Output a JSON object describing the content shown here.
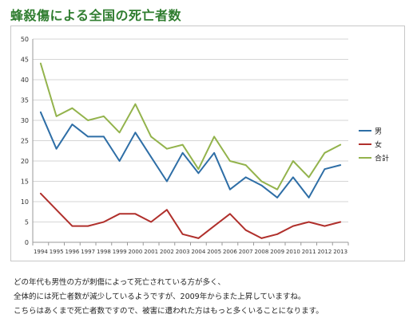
{
  "page": {
    "title": "蜂殺傷による全国の死亡者数"
  },
  "caption": {
    "lines": [
      "どの年代も男性の方が刺傷によって死亡されている方が多く、",
      "全体的には死亡者数が減少しているようですが、2009年からまた上昇していますね。",
      "こちらはあくまで死亡者数ですので、被害に遭われた方はもっと多くいることになります。"
    ]
  },
  "chart_data": {
    "type": "line",
    "title": "",
    "xlabel": "",
    "ylabel": "",
    "ylim": [
      0,
      50
    ],
    "yticks": [
      0,
      5,
      10,
      15,
      20,
      25,
      30,
      35,
      40,
      45,
      50
    ],
    "grid": true,
    "legend_position": "right",
    "categories": [
      "1994",
      "1995",
      "1996",
      "1997",
      "1998",
      "1999",
      "2000",
      "2001",
      "2002",
      "2003",
      "2004",
      "2005",
      "2006",
      "2007",
      "2008",
      "2009",
      "2010",
      "2011",
      "2012",
      "2013"
    ],
    "series": [
      {
        "name": "男",
        "color": "#2e6ea6",
        "values": [
          32,
          23,
          29,
          26,
          26,
          20,
          27,
          21,
          15,
          22,
          17,
          22,
          13,
          16,
          14,
          11,
          16,
          11,
          18,
          19
        ]
      },
      {
        "name": "女",
        "color": "#b0302c",
        "values": [
          12,
          8,
          4,
          4,
          5,
          7,
          7,
          5,
          8,
          2,
          1,
          4,
          7,
          3,
          1,
          2,
          4,
          5,
          4,
          5
        ]
      },
      {
        "name": "合計",
        "color": "#93b34c",
        "values": [
          44,
          31,
          33,
          30,
          31,
          27,
          34,
          26,
          23,
          24,
          18,
          26,
          20,
          19,
          15,
          13,
          20,
          16,
          22,
          24
        ]
      }
    ]
  }
}
